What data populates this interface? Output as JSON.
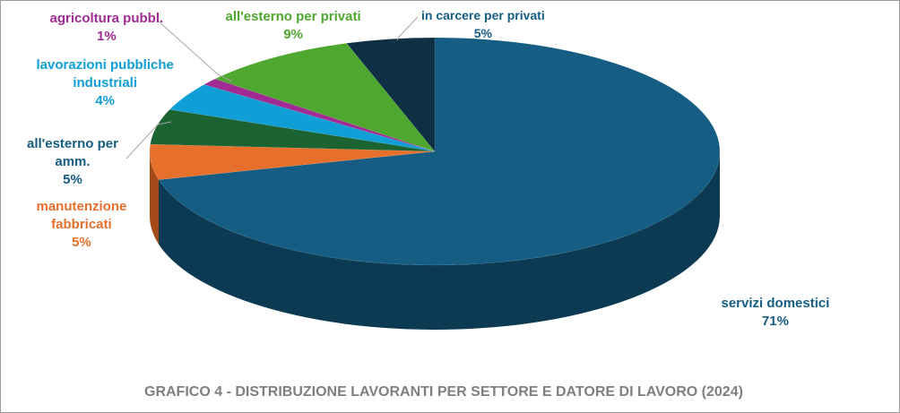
{
  "chart_data": {
    "type": "pie",
    "title": "GRAFICO 4 - DISTRIBUZIONE LAVORANTI PER SETTORE E DATORE DI LAVORO (2024)",
    "slices": [
      {
        "name": "servizi domestici",
        "label_lines": [
          "servizi domestici"
        ],
        "value": 71,
        "value_label": "71%",
        "color": "#155d82",
        "side_color": "#0c3a52"
      },
      {
        "name": "manutenzione fabbricati",
        "label_lines": [
          "manutenzione",
          "fabbricati"
        ],
        "value": 5,
        "value_label": "5%",
        "color": "#e66f2c",
        "side_color": "#a44a18"
      },
      {
        "name": "all'esterno per amm.",
        "label_lines": [
          "all'esterno per",
          "amm."
        ],
        "value": 5,
        "value_label": "5%",
        "color": "#1b6331",
        "side_color": "#0f3d1d"
      },
      {
        "name": "lavorazioni pubbliche industriali",
        "label_lines": [
          "lavorazioni pubbliche",
          "industriali"
        ],
        "value": 4,
        "value_label": "4%",
        "color": "#0f9ed5",
        "side_color": "#0a6e95"
      },
      {
        "name": "agricoltura pubbl.",
        "label_lines": [
          "agricoltura pubbl."
        ],
        "value": 1,
        "value_label": "1%",
        "color": "#a02b93",
        "side_color": "#6e1d65"
      },
      {
        "name": "all'esterno per privati",
        "label_lines": [
          "all'esterno per privati"
        ],
        "value": 9,
        "value_label": "9%",
        "color": "#4ea72e",
        "side_color": "#33721d"
      },
      {
        "name": "in carcere per privati",
        "label_lines": [
          "in carcere per privati"
        ],
        "value": 5,
        "value_label": "5%",
        "color": "#0e2f44",
        "side_color": "#081c29"
      }
    ],
    "label_colors": {
      "servizi domestici": "#155d82",
      "manutenzione fabbricati": "#e66f2c",
      "all'esterno per amm.": "#155d82",
      "lavorazioni pubbliche industriali": "#0f9ed5",
      "agricoltura pubbl.": "#a02b93",
      "all'esterno per privati": "#4ea72e",
      "in carcere per privati": "#155d82"
    },
    "style": "3d-pie",
    "legend": "none"
  }
}
